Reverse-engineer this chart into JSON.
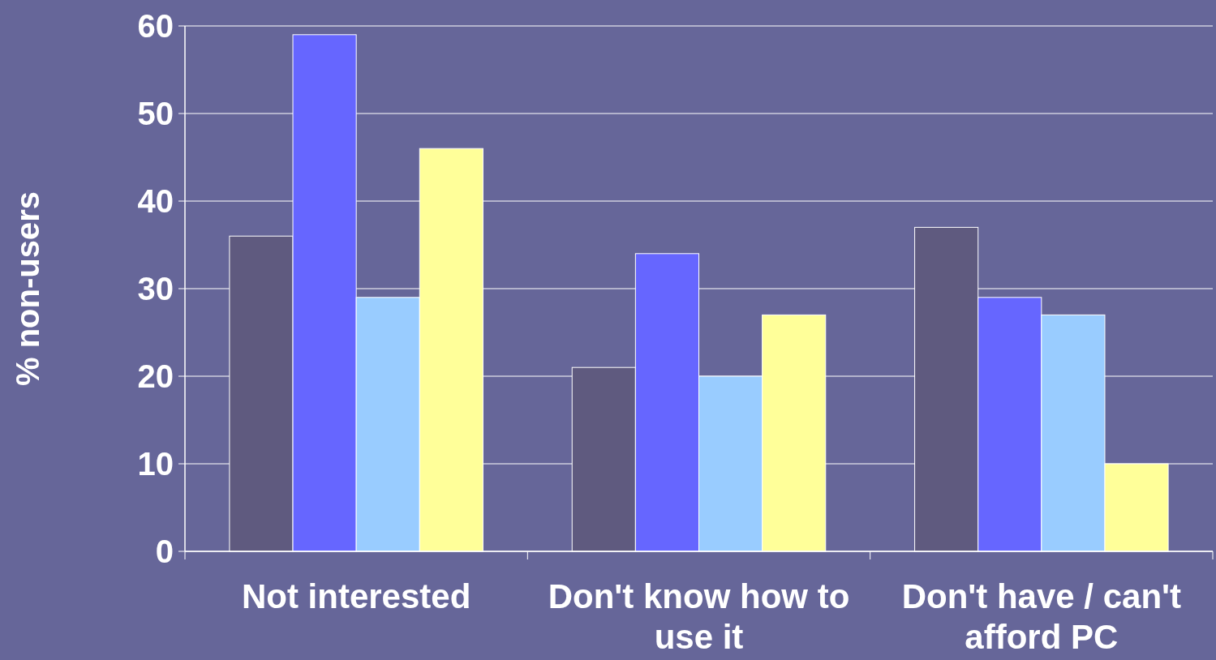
{
  "chart_data": {
    "type": "bar",
    "ylabel": "% non-users",
    "categories": [
      "Not interested",
      "Don't know how to use it",
      "Don't have / can't afford PC"
    ],
    "series": [
      {
        "color": "#5f5a7f",
        "values": [
          36,
          21,
          37
        ]
      },
      {
        "color": "#6666ff",
        "values": [
          59,
          34,
          29
        ]
      },
      {
        "color": "#99ccff",
        "values": [
          29,
          20,
          27
        ]
      },
      {
        "color": "#ffff99",
        "values": [
          46,
          27,
          10
        ]
      }
    ],
    "ylim": [
      0,
      60
    ],
    "yticks": [
      0,
      10,
      20,
      30,
      40,
      50,
      60
    ],
    "grid": "y"
  }
}
